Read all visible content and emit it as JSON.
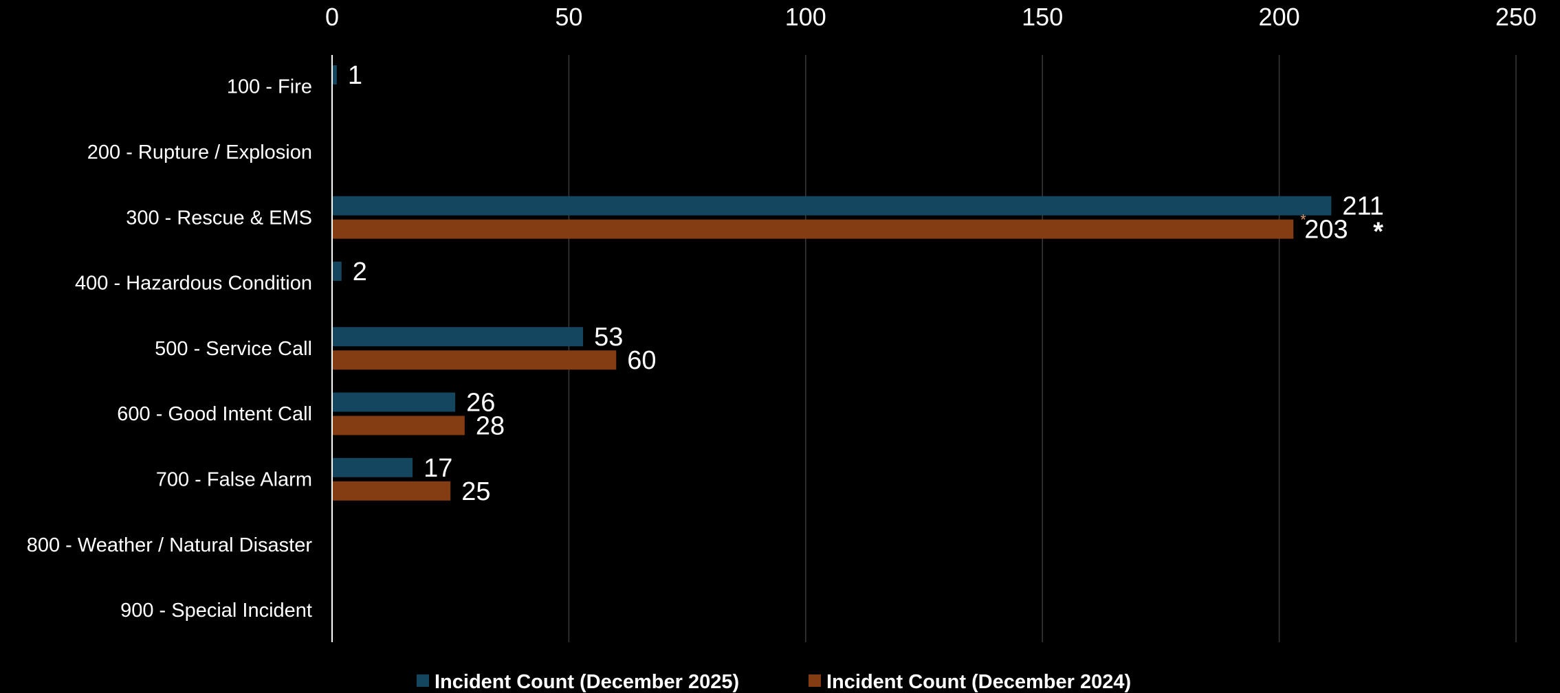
{
  "chart_data": {
    "type": "bar",
    "orientation": "horizontal",
    "categories": [
      "100 - Fire",
      "200 - Rupture / Explosion",
      "300 - Rescue & EMS",
      "400 - Hazardous Condition",
      "500 - Service Call",
      "600 - Good Intent Call",
      "700 - False Alarm",
      "800 - Weather / Natural Disaster",
      "900 - Special Incident"
    ],
    "series": [
      {
        "name": "Incident Count (December 2025)",
        "color": "#15465f",
        "values": [
          1,
          null,
          211,
          2,
          53,
          26,
          17,
          null,
          null
        ],
        "labels": [
          "1",
          "",
          "211",
          "2",
          "53",
          "26",
          "17",
          "",
          ""
        ]
      },
      {
        "name": "Incident Count (December 2024)",
        "color": "#843c12",
        "values": [
          null,
          null,
          203,
          null,
          60,
          28,
          25,
          null,
          null
        ],
        "labels": [
          "",
          "",
          "203",
          "",
          "60",
          "28",
          "25",
          "",
          ""
        ]
      }
    ],
    "xlim": [
      0,
      250
    ],
    "xticks": [
      0,
      50,
      100,
      150,
      200,
      250
    ],
    "xtick_labels": [
      "0",
      "50",
      "100",
      "150",
      "200",
      "250"
    ],
    "x_axis_position": "top",
    "grid": true,
    "legend_position": "bottom",
    "annotations": [
      {
        "category": "300 - Rescue & EMS",
        "series": 1,
        "text": "*"
      }
    ]
  }
}
